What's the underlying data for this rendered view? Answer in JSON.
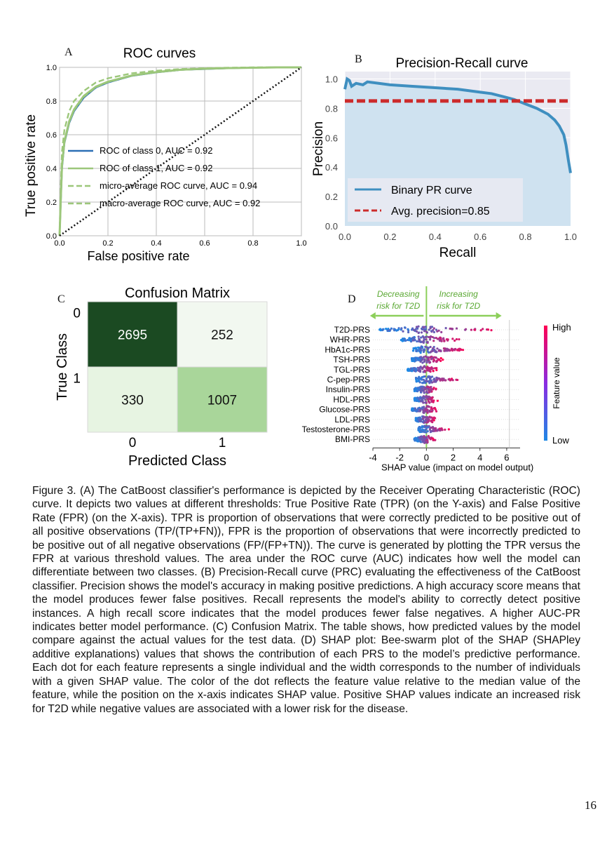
{
  "figure": {
    "panel_letters": [
      "A",
      "B",
      "C",
      "D"
    ],
    "caption": "Figure 3. (A) The CatBoost classifier's performance is depicted by the Receiver Operating Characteristic (ROC) curve. It depicts two values at different thresholds: True Positive Rate (TPR) (on the Y-axis) and False Positive Rate (FPR) (on the X-axis).  TPR is proportion of observations that were correctly predicted to be positive out of all positive observations (TP/(TP+FN)), FPR is the proportion of observations that were incorrectly predicted to be positive out of all negative observations (FP/(FP+TN)). The curve is generated by plotting the TPR versus the FPR at various threshold values. The area under the ROC curve (AUC) indicates how well the model can differentiate between two classes. (B) Precision-Recall curve (PRC) evaluating the effectiveness of the CatBoost classifier. Precision shows the model's accuracy in making positive predictions. A high accuracy score means that the model produces fewer false positives. Recall represents the model's ability to correctly detect positive instances. A high recall score indicates that the model produces fewer false negatives. A higher AUC-PR indicates better model performance. (C) Confusion Matrix. The table shows, how predicted values by the model compare against the actual values for the test data. (D) SHAP plot: Bee-swarm plot of the SHAP (SHAPley additive explanations) values that shows the contribution of each PRS to the model’s predictive performance. Each dot for each feature represents a single individual and the width corresponds to the number of individuals with a given SHAP value. The color of the dot reflects the feature value relative to the median value of the feature, while the position on the x-axis indicates SHAP value. Positive SHAP values indicate an increased risk for T2D while negative values are associated with a lower risk for the disease.",
    "page_number": "16"
  },
  "colors": {
    "roc_class0": "#2c6fb5",
    "roc_class1": "#9cc77a",
    "pr_line": "#3f8fc0",
    "pr_fill": "#cfe2f0",
    "avg_precision": "#cc2b2b",
    "cm_dark": "#1b4a22",
    "cm_light": "#f2f8f0",
    "cm_mid": "#a9d69a",
    "cm_pale": "#e7f4e2",
    "shap_high": "#ff0052",
    "shap_low": "#1e88e5",
    "arrow_green": "#8ccf5a"
  },
  "chart_data": [
    {
      "type": "line",
      "panel": "A",
      "title": "ROC curves",
      "xlabel": "False positive rate",
      "ylabel": "True positive rate",
      "xlim": [
        0,
        1
      ],
      "ylim": [
        0,
        1
      ],
      "xticks": [
        "0.0",
        "0.2",
        "0.4",
        "0.6",
        "0.8",
        "1.0"
      ],
      "yticks": [
        "0.0",
        "0.2",
        "0.4",
        "0.6",
        "0.8",
        "1.0"
      ],
      "grid": true,
      "legend_position": "lower-right",
      "series": [
        {
          "name": "ROC of class 0, AUC = 0.92",
          "style": "solid",
          "color": "#2c6fb5",
          "x": [
            0,
            0.005,
            0.01,
            0.02,
            0.04,
            0.06,
            0.1,
            0.15,
            0.2,
            0.3,
            0.4,
            0.5,
            0.6,
            0.7,
            0.8,
            0.9,
            1.0
          ],
          "y": [
            0,
            0.2,
            0.4,
            0.55,
            0.67,
            0.74,
            0.82,
            0.88,
            0.91,
            0.95,
            0.97,
            0.985,
            0.99,
            0.995,
            0.998,
            1.0,
            1.0
          ]
        },
        {
          "name": "ROC of class 1, AUC = 0.92",
          "style": "solid",
          "color": "#9cc77a",
          "x": [
            0,
            0.005,
            0.01,
            0.02,
            0.04,
            0.06,
            0.1,
            0.15,
            0.2,
            0.3,
            0.4,
            0.5,
            0.6,
            0.7,
            0.8,
            0.9,
            1.0
          ],
          "y": [
            0,
            0.22,
            0.42,
            0.56,
            0.68,
            0.75,
            0.83,
            0.885,
            0.915,
            0.952,
            0.972,
            0.986,
            0.992,
            0.996,
            0.998,
            1.0,
            1.0
          ]
        },
        {
          "name": "micro-average ROC curve, AUC = 0.94",
          "style": "dashed",
          "color": "#9cc77a",
          "x": [
            0,
            0.005,
            0.01,
            0.02,
            0.04,
            0.06,
            0.1,
            0.15,
            0.2,
            0.3,
            0.4,
            0.5,
            0.6,
            0.7,
            0.8,
            0.9,
            1.0
          ],
          "y": [
            0,
            0.3,
            0.5,
            0.63,
            0.74,
            0.8,
            0.86,
            0.91,
            0.935,
            0.965,
            0.98,
            0.99,
            0.995,
            0.998,
            1.0,
            1.0,
            1.0
          ]
        },
        {
          "name": "macro-average ROC curve, AUC = 0.92",
          "style": "dashed",
          "color": "#9cc77a",
          "x": [
            0,
            0.005,
            0.01,
            0.02,
            0.04,
            0.06,
            0.1,
            0.15,
            0.2,
            0.3,
            0.4,
            0.5,
            0.6,
            0.7,
            0.8,
            0.9,
            1.0
          ],
          "y": [
            0,
            0.21,
            0.41,
            0.555,
            0.675,
            0.745,
            0.825,
            0.882,
            0.912,
            0.951,
            0.971,
            0.985,
            0.991,
            0.995,
            0.998,
            1.0,
            1.0
          ]
        },
        {
          "name": "",
          "style": "dotted",
          "color": "#111111",
          "x": [
            0,
            1
          ],
          "y": [
            0,
            1
          ]
        }
      ]
    },
    {
      "type": "area",
      "panel": "B",
      "title": "Precision-Recall curve",
      "xlabel": "Recall",
      "ylabel": "Precision",
      "xlim": [
        0,
        1
      ],
      "ylim": [
        0,
        1.05
      ],
      "xticks": [
        "0.0",
        "0.2",
        "0.4",
        "0.6",
        "0.8",
        "1.0"
      ],
      "yticks": [
        "0.0",
        "0.2",
        "0.4",
        "0.6",
        "0.8",
        "1.0"
      ],
      "grid": true,
      "legend_position": "lower-left",
      "series": [
        {
          "name": "Binary PR curve",
          "style": "solid",
          "x": [
            0,
            0.01,
            0.02,
            0.03,
            0.05,
            0.08,
            0.1,
            0.15,
            0.2,
            0.3,
            0.4,
            0.5,
            0.6,
            0.65,
            0.7,
            0.75,
            0.8,
            0.85,
            0.9,
            0.93,
            0.95,
            0.97,
            0.98,
            0.99,
            1.0
          ],
          "y": [
            0.93,
            1.0,
            0.99,
            0.95,
            0.97,
            0.96,
            0.98,
            0.97,
            0.96,
            0.95,
            0.94,
            0.93,
            0.91,
            0.9,
            0.88,
            0.86,
            0.83,
            0.8,
            0.76,
            0.72,
            0.68,
            0.62,
            0.55,
            0.45,
            0.36
          ]
        },
        {
          "name": "Avg. precision=0.85",
          "style": "dashed",
          "x": [
            0,
            1
          ],
          "y": [
            0.85,
            0.85
          ]
        }
      ]
    },
    {
      "type": "heatmap",
      "panel": "C",
      "title": "Confusion Matrix",
      "xlabel": "Predicted Class",
      "ylabel": "True Class",
      "x_categories": [
        "0",
        "1"
      ],
      "y_categories": [
        "0",
        "1"
      ],
      "values": [
        [
          2695,
          252
        ],
        [
          330,
          1007
        ]
      ]
    },
    {
      "type": "scatter",
      "panel": "D",
      "xlabel": "SHAP value (impact on model output)",
      "xlim": [
        -4,
        7
      ],
      "xticks": [
        -4,
        -2,
        0,
        2,
        4,
        6
      ],
      "annotation_left": "Decreasing risk for T2D",
      "annotation_right": "Increasing risk for T2D",
      "colorbar_label": "Feature value",
      "colorbar_high": "High",
      "colorbar_low": "Low",
      "features": [
        {
          "name": "T2D-PRS",
          "min": -3.5,
          "max": 6.2,
          "spread": 1.6
        },
        {
          "name": "WHR-PRS",
          "min": -1.9,
          "max": 2.6,
          "spread": 0.9
        },
        {
          "name": "HbA1c-PRS",
          "min": -1.0,
          "max": 3.3,
          "spread": 0.6
        },
        {
          "name": "TSH-PRS",
          "min": -1.1,
          "max": 1.3,
          "spread": 0.5
        },
        {
          "name": "TGL-PRS",
          "min": -1.4,
          "max": 1.0,
          "spread": 0.45
        },
        {
          "name": "C-pep-PRS",
          "min": -0.8,
          "max": 2.7,
          "spread": 0.5
        },
        {
          "name": "Insulin-PRS",
          "min": -0.9,
          "max": 0.9,
          "spread": 0.35
        },
        {
          "name": "HDL-PRS",
          "min": -0.9,
          "max": 0.9,
          "spread": 0.35
        },
        {
          "name": "Glucose-PRS",
          "min": -1.1,
          "max": 1.0,
          "spread": 0.35
        },
        {
          "name": "LDL-PRS",
          "min": -0.8,
          "max": 0.8,
          "spread": 0.3
        },
        {
          "name": "Testosterone-PRS",
          "min": -0.6,
          "max": 1.8,
          "spread": 0.3
        },
        {
          "name": "BMI-PRS",
          "min": -0.9,
          "max": 0.8,
          "spread": 0.3
        }
      ]
    }
  ]
}
